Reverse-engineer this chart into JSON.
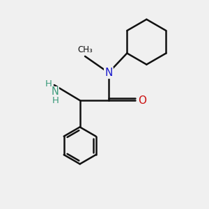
{
  "background_color": "#f0f0f0",
  "bond_color": "#111111",
  "bond_width": 1.8,
  "atom_colors": {
    "N": "#1919cc",
    "O": "#cc1111",
    "NH2": "#3a9a7a",
    "C": "#111111"
  },
  "xlim": [
    0,
    10
  ],
  "ylim": [
    0,
    10
  ],
  "figsize": [
    3.0,
    3.0
  ],
  "dpi": 100
}
